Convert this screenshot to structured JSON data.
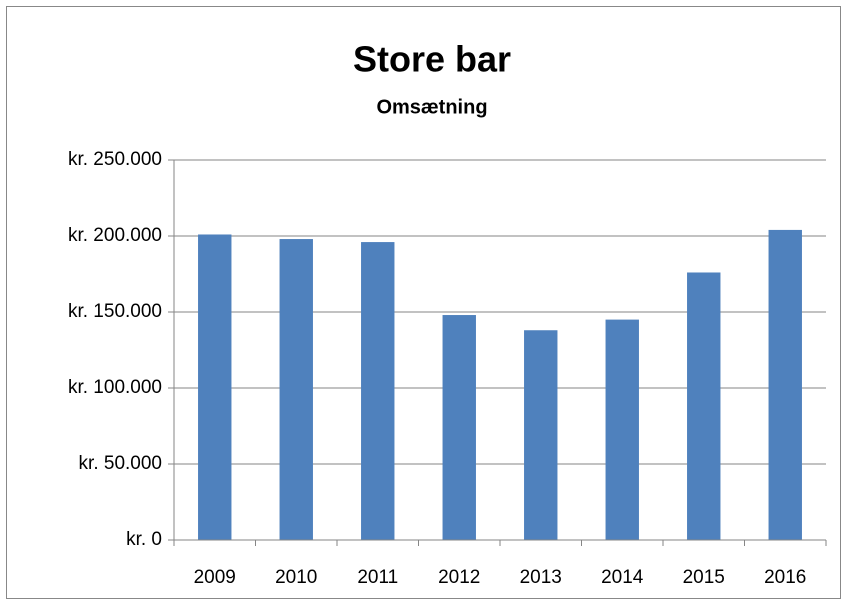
{
  "chart_data": {
    "type": "bar",
    "title": "Store bar",
    "subtitle": "Omsætning",
    "categories": [
      "2009",
      "2010",
      "2011",
      "2012",
      "2013",
      "2014",
      "2015",
      "2016"
    ],
    "values": [
      201000,
      198000,
      196000,
      148000,
      138000,
      145000,
      176000,
      204000
    ],
    "color": "#4f81bd",
    "ylim": [
      0,
      250000
    ],
    "yticks": [
      {
        "value": 0,
        "label": "kr. 0"
      },
      {
        "value": 50000,
        "label": "kr. 50.000"
      },
      {
        "value": 100000,
        "label": "kr. 100.000"
      },
      {
        "value": 150000,
        "label": "kr. 150.000"
      },
      {
        "value": 200000,
        "label": "kr. 200.000"
      },
      {
        "value": 250000,
        "label": "kr. 250.000"
      }
    ],
    "grid": true
  }
}
